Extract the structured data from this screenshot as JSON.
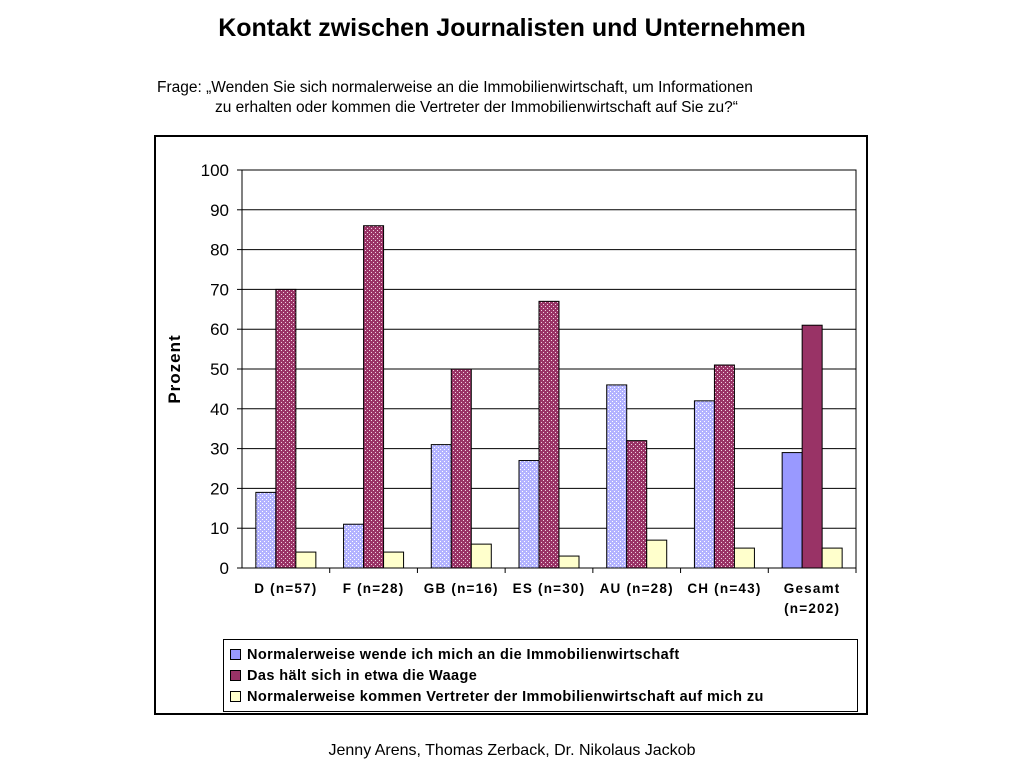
{
  "title": "Kontakt zwischen Journalisten und Unternehmen",
  "question": {
    "line1": "Frage: „Wenden Sie sich normalerweise an die Immobilienwirtschaft, um Informationen",
    "line2": "zu erhalten oder kommen die Vertreter der Immobilienwirtschaft auf Sie zu?“"
  },
  "footer": "Jenny Arens, Thomas Zerback, Dr. Nikolaus Jackob",
  "chart_data": {
    "type": "bar",
    "ylabel": "Prozent",
    "ylim": [
      0,
      100
    ],
    "yticks": [
      0,
      10,
      20,
      30,
      40,
      50,
      60,
      70,
      80,
      90,
      100
    ],
    "grid": true,
    "legend_position": "bottom",
    "categories": [
      [
        "D (n=57)"
      ],
      [
        "F (n=28)"
      ],
      [
        "GB (n=16)"
      ],
      [
        "ES (n=30)"
      ],
      [
        "AU (n=28)"
      ],
      [
        "CH (n=43)"
      ],
      [
        "Gesamt",
        "(n=202)"
      ]
    ],
    "series": [
      {
        "name": "Normalerweise wende ich mich an die Immobilienwirtschaft",
        "color": "#9999ff",
        "values": [
          19,
          11,
          31,
          27,
          46,
          42,
          29
        ]
      },
      {
        "name": "Das hält sich in etwa die Waage",
        "color": "#993366",
        "values": [
          70,
          86,
          50,
          67,
          32,
          51,
          61
        ]
      },
      {
        "name": "Normalerweise kommen Vertreter der Immobilienwirtschaft auf mich zu",
        "color": "#ffffcc",
        "values": [
          4,
          4,
          6,
          3,
          7,
          5,
          5
        ]
      }
    ]
  }
}
